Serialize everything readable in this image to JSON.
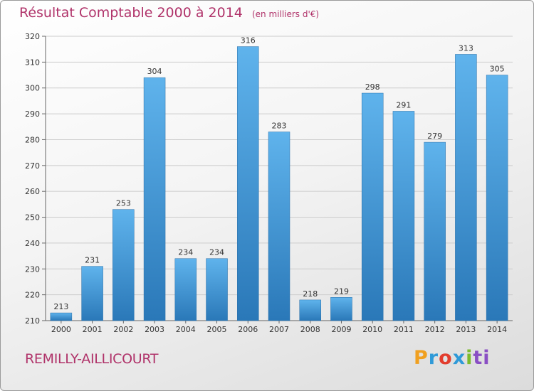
{
  "title": "Résultat Comptable 2000 à 2014",
  "subtitle": "(en milliers d'€)",
  "commune": "REMILLY-AILLICOURT",
  "logo": {
    "parts": [
      "P",
      "r",
      "o",
      "x",
      "i",
      "ti"
    ]
  },
  "colors": {
    "title": "#b0336a",
    "bar_light": "#5fb3ec",
    "bar_dark": "#2a78b8",
    "grid": "#cccccc"
  },
  "chart_data": {
    "type": "bar",
    "title": "Résultat Comptable 2000 à 2014",
    "xlabel": "",
    "ylabel": "",
    "ylim": [
      210,
      320
    ],
    "yticks": [
      210,
      220,
      230,
      240,
      250,
      260,
      270,
      280,
      290,
      300,
      310,
      320
    ],
    "grid": true,
    "categories": [
      "2000",
      "2001",
      "2002",
      "2003",
      "2004",
      "2005",
      "2006",
      "2007",
      "2008",
      "2009",
      "2010",
      "2011",
      "2012",
      "2013",
      "2014"
    ],
    "values": [
      213,
      231,
      253,
      304,
      234,
      234,
      316,
      283,
      218,
      219,
      298,
      291,
      279,
      313,
      305
    ]
  }
}
